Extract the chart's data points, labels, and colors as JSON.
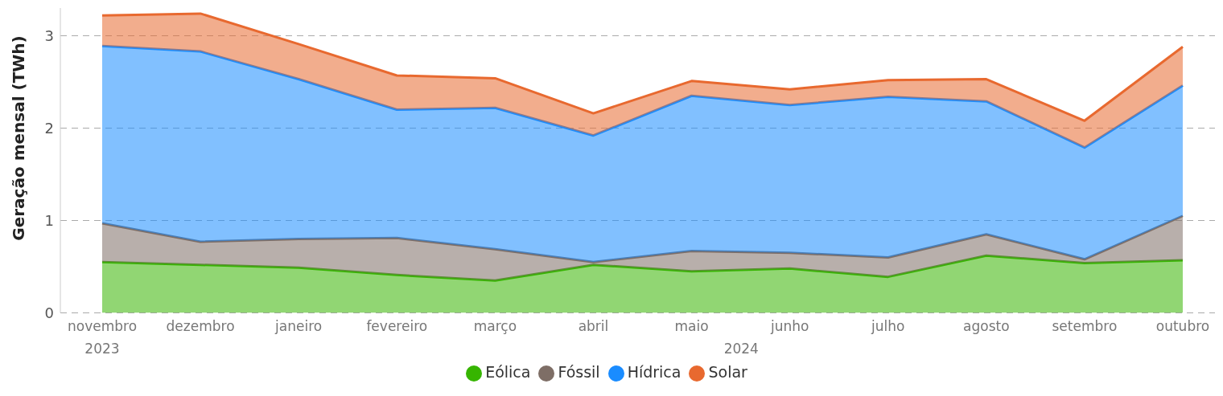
{
  "chart_data": {
    "type": "area",
    "stacked": true,
    "ylabel": "Geração mensal (TWh)",
    "categories": [
      "novembro",
      "dezembro",
      "janeiro",
      "fevereiro",
      "março",
      "abril",
      "maio",
      "junho",
      "julho",
      "agosto",
      "setembro",
      "outubro"
    ],
    "annotations": [
      "2023",
      "2024"
    ],
    "series": [
      {
        "name": "Eólica",
        "color": "#36b500",
        "values": [
          0.55,
          0.52,
          0.49,
          0.41,
          0.35,
          0.52,
          0.45,
          0.48,
          0.39,
          0.62,
          0.54,
          0.57
        ]
      },
      {
        "name": "Fóssil",
        "color": "#7e6e66",
        "values": [
          0.42,
          0.25,
          0.31,
          0.4,
          0.34,
          0.03,
          0.22,
          0.17,
          0.21,
          0.23,
          0.04,
          0.48
        ]
      },
      {
        "name": "Hídrica",
        "color": "#1a8cff",
        "values": [
          1.92,
          2.06,
          1.73,
          1.39,
          1.53,
          1.37,
          1.68,
          1.6,
          1.74,
          1.44,
          1.21,
          1.41
        ]
      },
      {
        "name": "Solar",
        "color": "#e8692f",
        "values": [
          0.33,
          0.41,
          0.38,
          0.37,
          0.32,
          0.24,
          0.16,
          0.17,
          0.18,
          0.24,
          0.29,
          0.42
        ]
      }
    ],
    "ylim": [
      0,
      3.3
    ],
    "yticks": [
      0,
      1,
      2,
      3
    ],
    "grid": "y",
    "legend": "bottom"
  }
}
